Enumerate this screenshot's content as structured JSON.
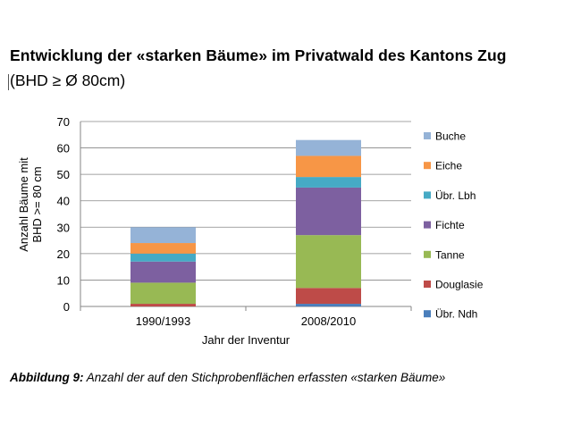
{
  "chart_data": {
    "type": "bar",
    "stacked": true,
    "title": "Entwicklung der «starken Bäume» im Privatwald des Kantons Zug",
    "subtitle": "(BHD ≥ Ø 80cm)",
    "xlabel": "Jahr der Inventur",
    "ylabel_line1": "Anzahl Bäume mit",
    "ylabel_line2": "BHD >= 80 cm",
    "categories": [
      "1990/1993",
      "2008/2010"
    ],
    "ylim": [
      0,
      70
    ],
    "yticks": [
      "0",
      "10",
      "20",
      "30",
      "40",
      "50",
      "60",
      "70"
    ],
    "grid": true,
    "legend_position": "right",
    "series": [
      {
        "name": "Übr. Ndh",
        "color": "#4a7ebb",
        "values": [
          0,
          1
        ]
      },
      {
        "name": "Douglasie",
        "color": "#be4b48",
        "values": [
          1,
          6
        ]
      },
      {
        "name": "Tanne",
        "color": "#98b954",
        "values": [
          8,
          20
        ]
      },
      {
        "name": "Fichte",
        "color": "#7d60a0",
        "values": [
          8,
          18
        ]
      },
      {
        "name": "Übr. Lbh",
        "color": "#46aac5",
        "values": [
          3,
          4
        ]
      },
      {
        "name": "Eiche",
        "color": "#f79646",
        "values": [
          4,
          8
        ]
      },
      {
        "name": "Buche",
        "color": "#95b3d7",
        "values": [
          6,
          6
        ]
      }
    ]
  },
  "caption": {
    "label": "Abbildung 9:",
    "text": " Anzahl der auf den Stichprobenflächen erfassten «starken Bäume»"
  }
}
